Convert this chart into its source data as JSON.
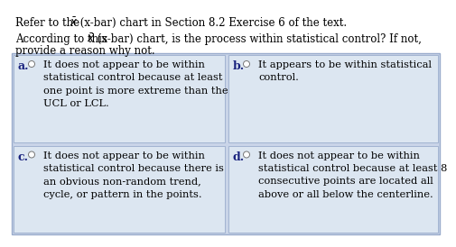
{
  "header1": "Refer to the ",
  "xbar": "$\\bar{x}$",
  "header1b": " (x-bar) chart in Section 8.2 Exercise 6 of the text.",
  "header2a": "According to this ",
  "header2b": " (x-bar) chart, is the process within statistical control? If not,",
  "header2c": "provide a reason why not.",
  "options": [
    {
      "label": "a.",
      "text": "It does not appear to be within\nstatistical control because at least\none point is more extreme than the\nUCL or LCL."
    },
    {
      "label": "b.",
      "text": "It appears to be within statistical\ncontrol."
    },
    {
      "label": "c.",
      "text": "It does not appear to be within\nstatistical control because there is\nan obvious non-random trend,\ncycle, or pattern in the points."
    },
    {
      "label": "d.",
      "text": "It does not appear to be within\nstatistical control because at least 8\nconsecutive points are located all\nabove or all below the centerline."
    }
  ],
  "bg_color": "#ffffff",
  "cell_bg_color": "#dce6f1",
  "outer_bg_color": "#c9d4e8",
  "border_color": "#9aaccc",
  "text_color": "#000000",
  "label_color": "#1a237e",
  "font_size": 8.2,
  "label_font_size": 9.0,
  "header_font_size": 8.5
}
